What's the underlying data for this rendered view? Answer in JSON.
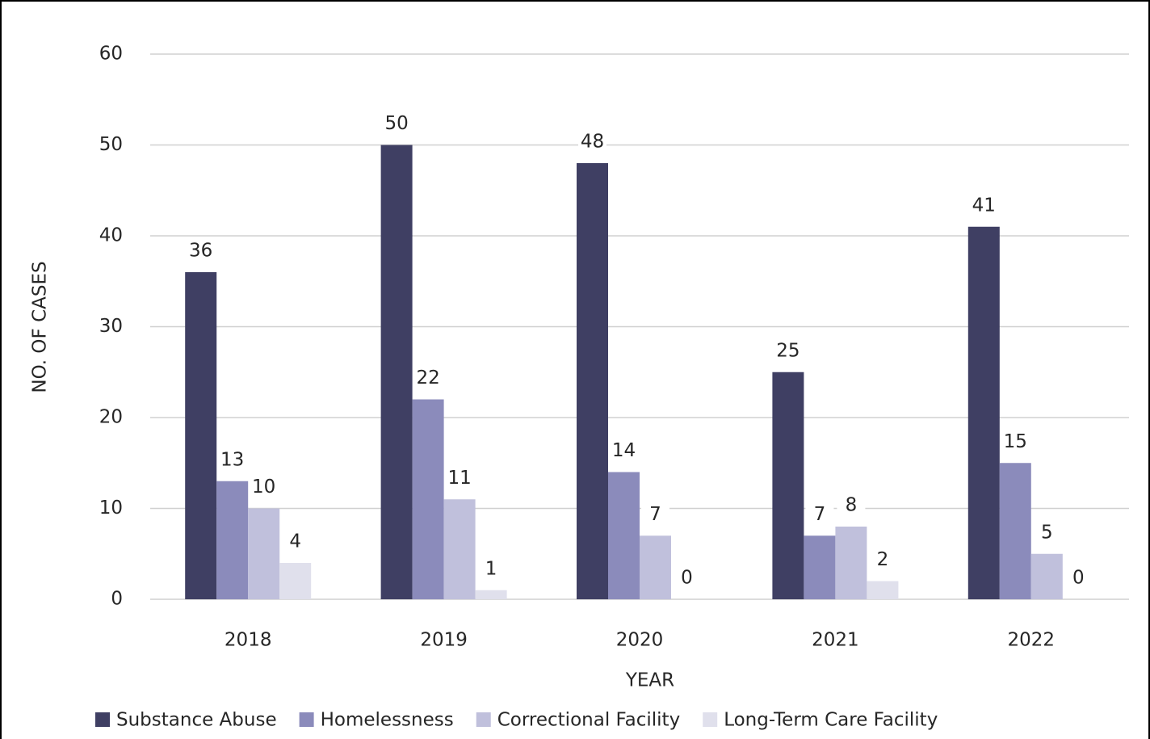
{
  "chart_data": {
    "type": "bar",
    "x_label": "YEAR",
    "y_label": "NO. OF CASES",
    "categories": [
      "2018",
      "2019",
      "2020",
      "2021",
      "2022"
    ],
    "series": [
      {
        "name": "Substance Abuse",
        "color": "#3f3f63",
        "values": [
          36,
          50,
          48,
          25,
          41
        ]
      },
      {
        "name": "Homelessness",
        "color": "#8b8bbb",
        "values": [
          13,
          22,
          14,
          7,
          15
        ]
      },
      {
        "name": "Correctional Facility",
        "color": "#c0c0dc",
        "values": [
          10,
          11,
          7,
          8,
          5
        ]
      },
      {
        "name": "Long-Term Care Facility",
        "color": "#e0e0ec",
        "values": [
          4,
          1,
          0,
          2,
          0
        ]
      }
    ],
    "ylim": [
      0,
      60
    ],
    "yticks": [
      0,
      10,
      20,
      30,
      40,
      50,
      60
    ],
    "grid": true,
    "legend": "bottom"
  }
}
